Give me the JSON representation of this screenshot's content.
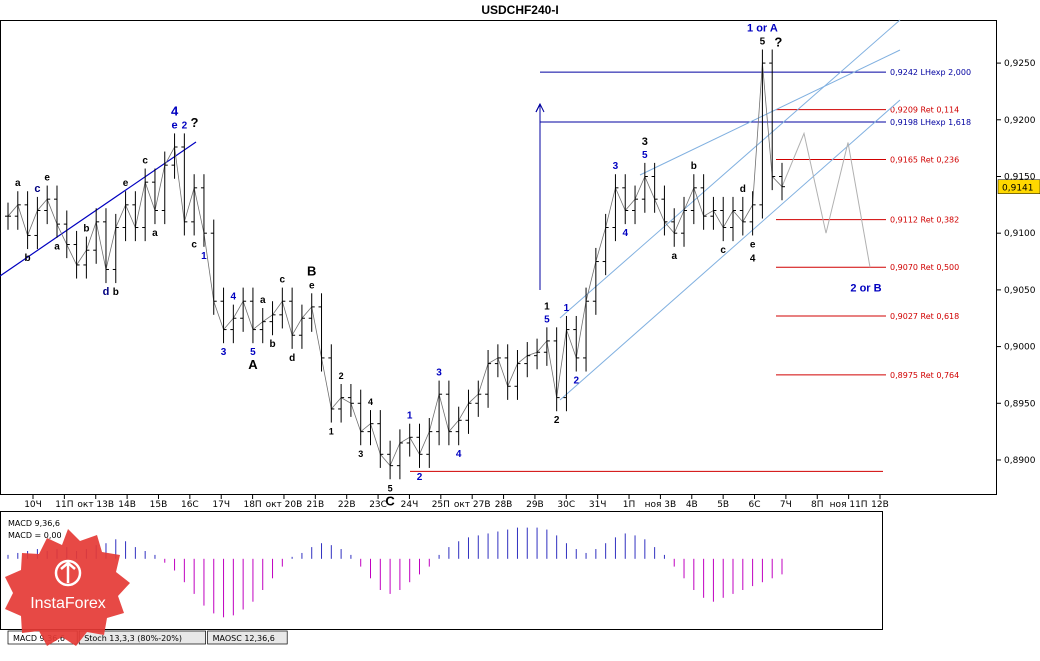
{
  "window": {
    "title": "USDCHF240-I"
  },
  "chart_data": {
    "type": "candlestick",
    "symbol": "USDCHF",
    "timeframe": "H4",
    "ylim": [
      0.887,
      0.9288
    ],
    "y_ticks": [
      "0,9250",
      "0,9200",
      "0,9150",
      "0,9100",
      "0,9050",
      "0,9000",
      "0,8950",
      "0,8900"
    ],
    "x_ticks": [
      "10Ч",
      "11П",
      "окт 13В",
      "14В",
      "15В",
      "16С",
      "17Ч",
      "18П",
      "окт 20В",
      "21В",
      "22В",
      "23С",
      "24Ч",
      "25П",
      "окт 27В",
      "28В",
      "29В",
      "30С",
      "31Ч",
      "1П",
      "ноя 3В",
      "4В",
      "5В",
      "6С",
      "7Ч",
      "8П",
      "ноя 11П",
      "12В"
    ],
    "current_price": "0,9141",
    "price_path": [
      0.9115,
      0.9125,
      0.9098,
      0.912,
      0.913,
      0.9108,
      0.909,
      0.9072,
      0.9085,
      0.911,
      0.9068,
      0.9105,
      0.9125,
      0.9105,
      0.9145,
      0.912,
      0.916,
      0.9176,
      0.911,
      0.914,
      0.91,
      0.904,
      0.9015,
      0.9025,
      0.904,
      0.9015,
      0.9022,
      0.9028,
      0.904,
      0.901,
      0.9025,
      0.9035,
      0.899,
      0.8945,
      0.8955,
      0.895,
      0.8925,
      0.8932,
      0.8905,
      0.8895,
      0.8915,
      0.892,
      0.8905,
      0.8925,
      0.8958,
      0.8925,
      0.8935,
      0.895,
      0.8958,
      0.8985,
      0.899,
      0.8965,
      0.8985,
      0.8992,
      0.8995,
      0.9005,
      0.8955,
      0.9015,
      0.899,
      0.904,
      0.9075,
      0.9105,
      0.914,
      0.912,
      0.913,
      0.915,
      0.913,
      0.911,
      0.91,
      0.912,
      0.914,
      0.9115,
      0.912,
      0.9105,
      0.912,
      0.911,
      0.9125,
      0.925,
      0.915,
      0.9141
    ],
    "fib_levels": [
      {
        "price": 0.9242,
        "label": "0,9242 LHexp 2,000",
        "color": "#0000a0"
      },
      {
        "price": 0.9209,
        "label": "0,9209 Ret 0,114",
        "color": "#d00000"
      },
      {
        "price": 0.9198,
        "label": "0,9198 LHexp 1,618",
        "color": "#0000a0"
      },
      {
        "price": 0.9165,
        "label": "0,9165 Ret 0,236",
        "color": "#d00000"
      },
      {
        "price": 0.9112,
        "label": "0,9112 Ret 0,382",
        "color": "#d00000"
      },
      {
        "price": 0.907,
        "label": "0,9070 Ret 0,500",
        "color": "#d00000"
      },
      {
        "price": 0.9027,
        "label": "0,9027 Ret 0,618",
        "color": "#d00000"
      },
      {
        "price": 0.8975,
        "label": "0,8975 Ret 0,764",
        "color": "#d00000"
      }
    ],
    "projection_path": [
      0.9141,
      0.9188,
      0.91,
      0.918,
      0.907
    ],
    "wave_labels": [
      {
        "i": 1,
        "text": "a",
        "pos": "top",
        "color": "#000000",
        "size": 10
      },
      {
        "i": 3,
        "text": "c",
        "pos": "top",
        "color": "#000080",
        "size": 11
      },
      {
        "i": 4,
        "text": "e",
        "pos": "top",
        "color": "#000000",
        "size": 10
      },
      {
        "i": 2,
        "text": "b",
        "pos": "bottom",
        "color": "#000000",
        "size": 10
      },
      {
        "i": 5,
        "text": "a",
        "pos": "bottom",
        "color": "#000000",
        "size": 10
      },
      {
        "i": 8,
        "text": "b",
        "pos": "top",
        "color": "#000000",
        "size": 10
      },
      {
        "i": 10,
        "text": "d",
        "pos": "bottom",
        "color": "#000080",
        "size": 11
      },
      {
        "i": 12,
        "text": "e",
        "pos": "top",
        "color": "#000000",
        "size": 10
      },
      {
        "i": 11,
        "text": "b",
        "pos": "bottom",
        "color": "#000000",
        "size": 10
      },
      {
        "i": 14,
        "text": "c",
        "pos": "top",
        "color": "#000000",
        "size": 10
      },
      {
        "i": 15,
        "text": "a",
        "pos": "bottom",
        "color": "#000000",
        "size": 10
      },
      {
        "i": 17,
        "text": "4",
        "pos": "top2",
        "color": "#0000c0",
        "size": 13
      },
      {
        "i": 17,
        "text": "e",
        "pos": "top",
        "color": "#0000c0",
        "size": 11
      },
      {
        "i": 19,
        "text": "c",
        "pos": "bottom",
        "color": "#000000",
        "size": 10
      },
      {
        "i": 18,
        "text": "2",
        "pos": "top",
        "color": "#0000c0",
        "size": 10
      },
      {
        "i": 20,
        "text": "1",
        "pos": "bottom",
        "color": "#0000c0",
        "size": 10
      },
      {
        "i": 22,
        "text": "3",
        "pos": "bottom",
        "color": "#0000c0",
        "size": 10
      },
      {
        "i": 23,
        "text": "4",
        "pos": "top",
        "color": "#0000c0",
        "size": 10
      },
      {
        "i": 25,
        "text": "5",
        "pos": "bottom",
        "color": "#0000c0",
        "size": 10
      },
      {
        "i": 25,
        "text": "A",
        "pos": "bottom2",
        "color": "#000000",
        "size": 13
      },
      {
        "i": 26,
        "text": "a",
        "pos": "top",
        "color": "#000000",
        "size": 10
      },
      {
        "i": 27,
        "text": "b",
        "pos": "bottom",
        "color": "#000000",
        "size": 10
      },
      {
        "i": 28,
        "text": "c",
        "pos": "top",
        "color": "#000000",
        "size": 10
      },
      {
        "i": 29,
        "text": "d",
        "pos": "bottom",
        "color": "#000000",
        "size": 10
      },
      {
        "i": 31,
        "text": "e",
        "pos": "top",
        "color": "#000000",
        "size": 10
      },
      {
        "i": 31,
        "text": "B",
        "pos": "top2",
        "color": "#000000",
        "size": 13
      },
      {
        "i": 33,
        "text": "1",
        "pos": "bottom",
        "color": "#000000",
        "size": 9
      },
      {
        "i": 34,
        "text": "2",
        "pos": "top",
        "color": "#000000",
        "size": 9
      },
      {
        "i": 36,
        "text": "3",
        "pos": "bottom",
        "color": "#000000",
        "size": 9
      },
      {
        "i": 37,
        "text": "4",
        "pos": "top",
        "color": "#000000",
        "size": 9
      },
      {
        "i": 39,
        "text": "5",
        "pos": "bottom",
        "color": "#000000",
        "size": 9
      },
      {
        "i": 39,
        "text": "C",
        "pos": "bottom2",
        "color": "#000000",
        "size": 13
      },
      {
        "i": 41,
        "text": "1",
        "pos": "top",
        "color": "#0000c0",
        "size": 10
      },
      {
        "i": 42,
        "text": "2",
        "pos": "bottom",
        "color": "#0000c0",
        "size": 10
      },
      {
        "i": 44,
        "text": "3",
        "pos": "top",
        "color": "#0000c0",
        "size": 10
      },
      {
        "i": 46,
        "text": "4",
        "pos": "bottom",
        "color": "#0000c0",
        "size": 10
      },
      {
        "i": 55,
        "text": "5",
        "pos": "top",
        "color": "#0000c0",
        "size": 10
      },
      {
        "i": 55,
        "text": "1",
        "pos": "top2",
        "color": "#000000",
        "size": 10
      },
      {
        "i": 56,
        "text": "2",
        "pos": "bottom",
        "color": "#000000",
        "size": 10
      },
      {
        "i": 57,
        "text": "1",
        "pos": "top",
        "color": "#0000c0",
        "size": 10
      },
      {
        "i": 58,
        "text": "2",
        "pos": "bottom",
        "color": "#0000c0",
        "size": 10
      },
      {
        "i": 62,
        "text": "3",
        "pos": "top",
        "color": "#0000c0",
        "size": 10
      },
      {
        "i": 63,
        "text": "4",
        "pos": "bottom",
        "color": "#0000c0",
        "size": 10
      },
      {
        "i": 65,
        "text": "5",
        "pos": "top",
        "color": "#0000c0",
        "size": 10
      },
      {
        "i": 65,
        "text": "3",
        "pos": "top2",
        "color": "#000000",
        "size": 11
      },
      {
        "i": 68,
        "text": "a",
        "pos": "bottom",
        "color": "#000000",
        "size": 10
      },
      {
        "i": 70,
        "text": "b",
        "pos": "top",
        "color": "#000000",
        "size": 10
      },
      {
        "i": 73,
        "text": "c",
        "pos": "bottom",
        "color": "#000000",
        "size": 10
      },
      {
        "i": 75,
        "text": "d",
        "pos": "top",
        "color": "#000000",
        "size": 10
      },
      {
        "i": 76,
        "text": "e",
        "pos": "bottom",
        "color": "#000000",
        "size": 10
      },
      {
        "i": 76,
        "text": "4",
        "pos": "bottom2",
        "color": "#000000",
        "size": 10
      },
      {
        "i": 77,
        "text": "5",
        "pos": "top",
        "color": "#000000",
        "size": 10
      },
      {
        "i": 77,
        "text": "1 or A",
        "pos": "top2",
        "color": "#0000c0",
        "size": 11
      }
    ],
    "annotations": [
      {
        "text": "?",
        "near_wave": "4 e",
        "color": "#000000"
      },
      {
        "text": "?",
        "near_wave": "5",
        "color": "#000000"
      },
      {
        "text": "2 or B",
        "at_price": 0.9052,
        "color": "#0000c0"
      }
    ],
    "indicator": {
      "name": "MACD 9,36,6",
      "line_label": "MACD = 0,00",
      "ylim": [
        -0.0036,
        0.0024
      ],
      "values": [
        0.0002,
        0.0003,
        0.0004,
        0.0005,
        0.0004,
        0.0005,
        0.0006,
        0.0004,
        0.0005,
        0.0007,
        0.0008,
        0.001,
        0.0009,
        0.0006,
        0.0004,
        0.0002,
        -0.0002,
        -0.0006,
        -0.0012,
        -0.0018,
        -0.0024,
        -0.0028,
        -0.003,
        -0.0029,
        -0.0026,
        -0.0022,
        -0.0016,
        -0.001,
        -0.0004,
        0.0001,
        0.0003,
        0.0006,
        0.0008,
        0.0007,
        0.0005,
        0.0002,
        -0.0004,
        -0.001,
        -0.0016,
        -0.0018,
        -0.0016,
        -0.0012,
        -0.0008,
        -0.0004,
        0.0002,
        0.0006,
        0.0009,
        0.0011,
        0.0012,
        0.0013,
        0.0014,
        0.0015,
        0.0016,
        0.0016,
        0.0016,
        0.0015,
        0.0012,
        0.0008,
        0.0005,
        0.0003,
        0.0005,
        0.0008,
        0.0011,
        0.0013,
        0.0012,
        0.001,
        0.0006,
        0.0002,
        -0.0004,
        -0.001,
        -0.0016,
        -0.002,
        -0.0022,
        -0.002,
        -0.0018,
        -0.0016,
        -0.0014,
        -0.0012,
        -0.001,
        -0.0008
      ]
    }
  },
  "tabs": [
    "MACD 9,36,6",
    "Stoch 13,3,3 (80%-20%)",
    "MAOSC 12,36,6"
  ],
  "logo": {
    "text": "InstaForex",
    "color": "#e53935"
  }
}
